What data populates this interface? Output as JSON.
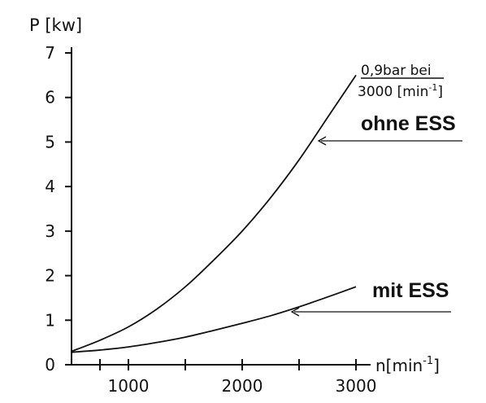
{
  "chart_data": {
    "type": "line",
    "ylabel": "P [kw]",
    "xlabel": "n[min",
    "xlabel_sup": "-1",
    "xlabel_close": "]",
    "xlim": [
      500,
      3150
    ],
    "ylim": [
      0,
      7.2
    ],
    "x_ticks": [
      1000,
      2000,
      3000
    ],
    "x_tick_labels": [
      "1000",
      "2000",
      "3000"
    ],
    "y_ticks": [
      0,
      1,
      2,
      3,
      4,
      5,
      6,
      7
    ],
    "y_tick_labels": [
      "0",
      "1",
      "2",
      "3",
      "4",
      "5",
      "6",
      "7"
    ],
    "grid": false,
    "series": [
      {
        "name": "ohne ESS",
        "x": [
          500,
          750,
          1000,
          1250,
          1500,
          1750,
          2000,
          2250,
          2500,
          2750,
          3000
        ],
        "y": [
          0.3,
          0.55,
          0.85,
          1.25,
          1.75,
          2.35,
          3.0,
          3.75,
          4.6,
          5.55,
          6.5
        ],
        "color": "#111111"
      },
      {
        "name": "mit ESS",
        "x": [
          500,
          750,
          1000,
          1250,
          1500,
          1750,
          2000,
          2250,
          2500,
          2750,
          3000
        ],
        "y": [
          0.28,
          0.33,
          0.4,
          0.5,
          0.62,
          0.77,
          0.93,
          1.1,
          1.3,
          1.52,
          1.75
        ],
        "color": "#111111"
      }
    ],
    "annotations": {
      "top_line1": "0,9bar bei",
      "top_line2": "3000 [min",
      "top_line2_sup": "-1",
      "top_line2_close": "]",
      "ohne_label": "ohne ESS",
      "mit_label": "mit ESS"
    }
  }
}
